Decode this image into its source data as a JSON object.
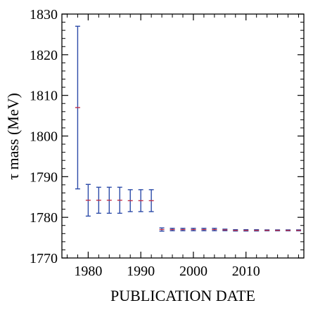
{
  "chart_data": {
    "type": "scatter",
    "title": "",
    "xlabel": "PUBLICATION DATE",
    "ylabel": "τ mass (MeV)",
    "xlim": [
      1975,
      2021
    ],
    "ylim": [
      1770,
      1830
    ],
    "x_ticks": [
      1980,
      1990,
      2000,
      2010
    ],
    "x_tick_labels": [
      "1980",
      "1990",
      "2000",
      "2010"
    ],
    "y_ticks": [
      1770,
      1780,
      1790,
      1800,
      1810,
      1820,
      1830
    ],
    "y_tick_labels": [
      "1770",
      "1780",
      "1790",
      "1800",
      "1810",
      "1820",
      "1830"
    ],
    "colors": {
      "error_bar": "#2b4aa8",
      "central_value": "#c0304a",
      "axis": "#000000"
    },
    "grid": false,
    "points": [
      {
        "x": 1978,
        "y": 1807.0,
        "err": 20.0
      },
      {
        "x": 1980,
        "y": 1784.2,
        "err": 3.9
      },
      {
        "x": 1982,
        "y": 1784.2,
        "err": 3.2
      },
      {
        "x": 1984,
        "y": 1784.2,
        "err": 3.2
      },
      {
        "x": 1986,
        "y": 1784.2,
        "err": 3.2
      },
      {
        "x": 1988,
        "y": 1784.1,
        "err": 2.7
      },
      {
        "x": 1990,
        "y": 1784.1,
        "err": 2.7
      },
      {
        "x": 1992,
        "y": 1784.1,
        "err": 2.7
      },
      {
        "x": 1994,
        "y": 1777.0,
        "err": 0.4
      },
      {
        "x": 1996,
        "y": 1777.0,
        "err": 0.3
      },
      {
        "x": 1998,
        "y": 1777.0,
        "err": 0.3
      },
      {
        "x": 2000,
        "y": 1777.0,
        "err": 0.3
      },
      {
        "x": 2002,
        "y": 1777.0,
        "err": 0.3
      },
      {
        "x": 2004,
        "y": 1777.0,
        "err": 0.3
      },
      {
        "x": 2006,
        "y": 1776.9,
        "err": 0.2
      },
      {
        "x": 2008,
        "y": 1776.8,
        "err": 0.17
      },
      {
        "x": 2010,
        "y": 1776.8,
        "err": 0.17
      },
      {
        "x": 2012,
        "y": 1776.8,
        "err": 0.16
      },
      {
        "x": 2014,
        "y": 1776.8,
        "err": 0.12
      },
      {
        "x": 2016,
        "y": 1776.8,
        "err": 0.12
      },
      {
        "x": 2018,
        "y": 1776.8,
        "err": 0.12
      },
      {
        "x": 2020,
        "y": 1776.8,
        "err": 0.12
      }
    ]
  }
}
